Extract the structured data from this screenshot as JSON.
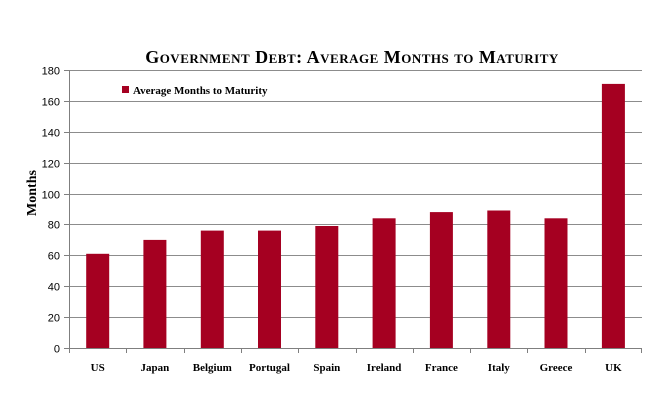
{
  "chart_data": {
    "type": "bar",
    "title": "Government Debt: Average Months to Maturity",
    "xlabel": "",
    "ylabel": "Months",
    "ylim": [
      0,
      180
    ],
    "y_ticks": [
      0,
      20,
      40,
      60,
      80,
      100,
      120,
      140,
      160,
      180
    ],
    "grid": true,
    "legend_position": "top-left",
    "categories": [
      "US",
      "Japan",
      "Belgium",
      "Portugal",
      "Spain",
      "Ireland",
      "France",
      "Italy",
      "Greece",
      "UK"
    ],
    "series": [
      {
        "name": "Average Months to Maturity",
        "color": "#A50021",
        "values": [
          61,
          70,
          76,
          76,
          79,
          84,
          88,
          89,
          84,
          171
        ]
      }
    ]
  }
}
